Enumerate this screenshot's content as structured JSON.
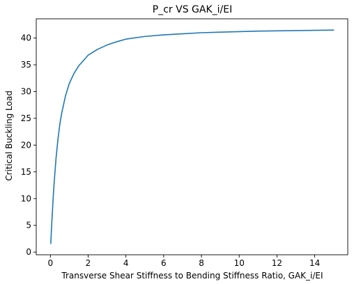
{
  "chart_data": {
    "type": "line",
    "title": "P_cr VS GAK_i/EI",
    "xlabel": "Transverse Shear Stiffness to Bending Stiffness Ratio, GAK_i/EI",
    "ylabel": "Critical Buckling Load",
    "xlim": [
      -0.75,
      15.75
    ],
    "ylim": [
      -0.5,
      43.6
    ],
    "xticks": [
      0,
      2,
      4,
      6,
      8,
      10,
      12,
      14
    ],
    "yticks": [
      0,
      5,
      10,
      15,
      20,
      25,
      30,
      35,
      40
    ],
    "grid": false,
    "legend": "none",
    "series": [
      {
        "color": "#1f77b4",
        "x": [
          0.02,
          0.05,
          0.1,
          0.15,
          0.2,
          0.3,
          0.4,
          0.5,
          0.6,
          0.8,
          1.0,
          1.25,
          1.5,
          2.0,
          2.5,
          3.0,
          3.5,
          4.0,
          5.0,
          6.0,
          7.0,
          8.0,
          9.0,
          10.0,
          11.0,
          12.0,
          13.0,
          14.0,
          15.0
        ],
        "y": [
          1.6,
          3.8,
          7.2,
          10.3,
          13.0,
          17.6,
          21.1,
          23.9,
          26.0,
          29.2,
          31.5,
          33.4,
          34.8,
          36.8,
          37.9,
          38.7,
          39.3,
          39.8,
          40.3,
          40.6,
          40.8,
          41.0,
          41.1,
          41.2,
          41.3,
          41.35,
          41.4,
          41.45,
          41.5
        ]
      }
    ]
  }
}
